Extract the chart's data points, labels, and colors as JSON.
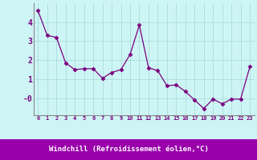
{
  "x": [
    0,
    1,
    2,
    3,
    4,
    5,
    6,
    7,
    8,
    9,
    10,
    11,
    12,
    13,
    14,
    15,
    16,
    17,
    18,
    19,
    20,
    21,
    22,
    23
  ],
  "y": [
    4.6,
    3.3,
    3.2,
    1.85,
    1.5,
    1.55,
    1.55,
    1.05,
    1.35,
    1.5,
    2.3,
    3.85,
    1.6,
    1.45,
    0.65,
    0.7,
    0.35,
    -0.1,
    -0.55,
    -0.05,
    -0.3,
    -0.05,
    -0.05,
    1.65
  ],
  "line_color": "#7b0080",
  "marker_color": "#7b0080",
  "bg_color": "#cef5f5",
  "band_color": "#9900aa",
  "grid_color": "#aadddd",
  "xlabel": "Windchill (Refroidissement éolien,°C)",
  "xlabel_color": "#7b0080",
  "tick_color": "#7b0080",
  "ylim": [
    -0.9,
    5.0
  ],
  "xlim": [
    -0.5,
    23.5
  ],
  "yticks": [
    4,
    3,
    2,
    1,
    0
  ],
  "ytick_labels": [
    "4",
    "3",
    "2",
    "1",
    "-0"
  ]
}
